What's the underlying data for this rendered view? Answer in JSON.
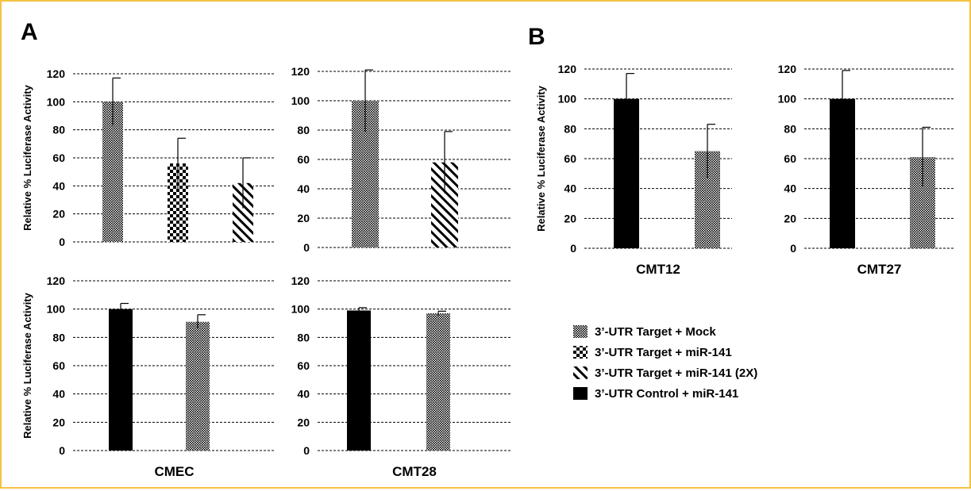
{
  "panel_labels": [
    "A",
    "B"
  ],
  "legend": [
    {
      "label": "3’-UTR Target + Mock",
      "pattern": "mock"
    },
    {
      "label": "3’-UTR Target + miR-141",
      "pattern": "mir"
    },
    {
      "label": "3’-UTR Target + miR-141  (2X)",
      "pattern": "mir2x"
    },
    {
      "label": "3’-UTR Control + miR-141",
      "pattern": "control"
    }
  ],
  "colors": {
    "bar": "#000000",
    "pattern_bg": "#ffffff",
    "grid": "#000000",
    "frame": "#f5c242"
  },
  "chart_data": [
    {
      "type": "bar",
      "panel": "A",
      "xlabel": "",
      "ylabel": "Relative % Luciferase Activity",
      "ylim": [
        0,
        120
      ],
      "yticks": [
        0,
        20,
        40,
        60,
        80,
        100,
        120
      ],
      "grid": true,
      "bars": [
        {
          "series": "3’-UTR Target + Mock",
          "value": 100,
          "error": 17
        },
        {
          "series": "3’-UTR Target + miR-141",
          "value": 56,
          "error": 18
        },
        {
          "series": "3’-UTR Target + miR-141  (2X)",
          "value": 42,
          "error": 18
        }
      ]
    },
    {
      "type": "bar",
      "panel": "A",
      "xlabel": "",
      "ylabel": "",
      "ylim": [
        0,
        120
      ],
      "yticks": [
        0,
        20,
        40,
        60,
        80,
        100,
        120
      ],
      "grid": true,
      "bars": [
        {
          "series": "3’-UTR Target + Mock",
          "value": 100,
          "error": 21
        },
        {
          "series": "3’-UTR Target + miR-141  (2X)",
          "value": 58,
          "error": 21
        }
      ]
    },
    {
      "type": "bar",
      "panel": "A",
      "xlabel": "CMEC",
      "ylabel": "Relative % Luciferase Activity",
      "ylim": [
        0,
        120
      ],
      "yticks": [
        0,
        20,
        40,
        60,
        80,
        100,
        120
      ],
      "grid": true,
      "bars": [
        {
          "series": "3’-UTR Control + miR-141",
          "value": 100,
          "error": 4
        },
        {
          "series": "3’-UTR Target + Mock",
          "value": 91,
          "error": 5
        }
      ]
    },
    {
      "type": "bar",
      "panel": "A",
      "xlabel": "CMT28",
      "ylabel": "",
      "ylim": [
        0,
        120
      ],
      "yticks": [
        0,
        20,
        40,
        60,
        80,
        100,
        120
      ],
      "grid": true,
      "bars": [
        {
          "series": "3’-UTR Control + miR-141",
          "value": 99,
          "error": 2
        },
        {
          "series": "3’-UTR Target + Mock",
          "value": 97,
          "error": 1.5
        }
      ]
    },
    {
      "type": "bar",
      "panel": "B",
      "xlabel": "CMT12",
      "ylabel": "Relative % Luciferase Activity",
      "ylim": [
        0,
        120
      ],
      "yticks": [
        0,
        20,
        40,
        60,
        80,
        100,
        120
      ],
      "grid": true,
      "bars": [
        {
          "series": "3’-UTR Control + miR-141",
          "value": 100,
          "error": 17
        },
        {
          "series": "3’-UTR Target + Mock",
          "value": 65,
          "error": 18
        }
      ]
    },
    {
      "type": "bar",
      "panel": "B",
      "xlabel": "CMT27",
      "ylabel": "",
      "ylim": [
        0,
        120
      ],
      "yticks": [
        0,
        20,
        40,
        60,
        80,
        100,
        120
      ],
      "grid": true,
      "bars": [
        {
          "series": "3’-UTR Control + miR-141",
          "value": 100,
          "error": 19
        },
        {
          "series": "3’-UTR Target + Mock",
          "value": 61,
          "error": 20
        }
      ]
    }
  ]
}
